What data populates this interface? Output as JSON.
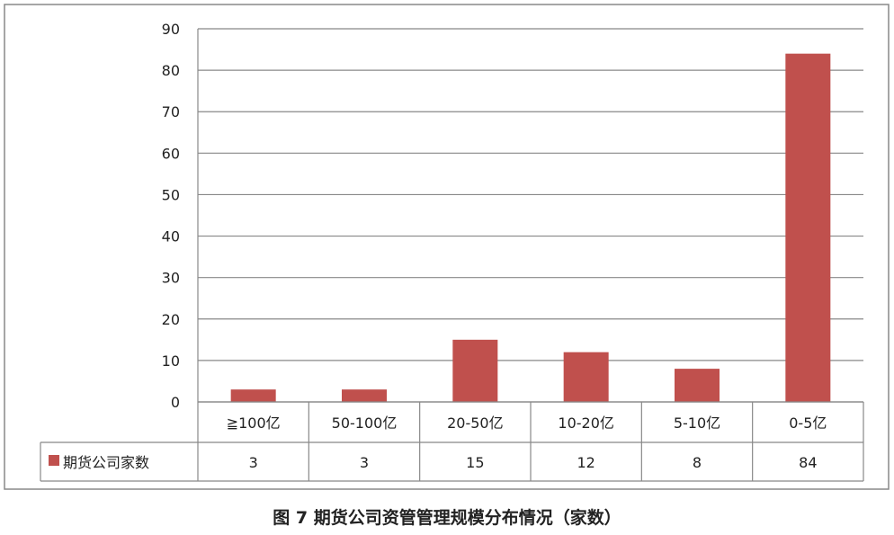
{
  "chart_data": {
    "type": "bar",
    "categories": [
      "≧100亿",
      "50-100亿",
      "20-50亿",
      "10-20亿",
      "5-10亿",
      "0-5亿"
    ],
    "series": [
      {
        "name": "期货公司家数",
        "values": [
          3,
          3,
          15,
          12,
          8,
          84
        ],
        "color": "#c0504d"
      }
    ],
    "ylim": [
      0,
      90
    ],
    "yticks": [
      0,
      10,
      20,
      30,
      40,
      50,
      60,
      70,
      80,
      90
    ],
    "grid": true,
    "legend": "data-table-left",
    "data_table": true,
    "caption": "图 7  期货公司资管管理规模分布情况（家数）"
  }
}
